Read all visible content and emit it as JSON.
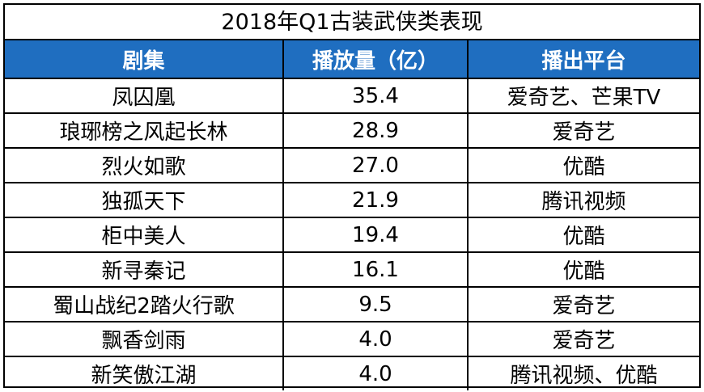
{
  "chart_data": {
    "type": "table",
    "title": "2018年Q1古装武侠类表现",
    "columns": [
      "剧集",
      "播放量（亿）",
      "播出平台"
    ],
    "rows": [
      [
        "凤囚凰",
        "35.4",
        "爱奇艺、芒果TV"
      ],
      [
        "琅琊榜之风起长林",
        "28.9",
        "爱奇艺"
      ],
      [
        "烈火如歌",
        "27.0",
        "优酷"
      ],
      [
        "独孤天下",
        "21.9",
        "腾讯视频"
      ],
      [
        "柜中美人",
        "19.4",
        "优酷"
      ],
      [
        "新寻秦记",
        "16.1",
        "优酷"
      ],
      [
        "蜀山战纪2踏火行歌",
        "9.5",
        "爱奇艺"
      ],
      [
        "飘香剑雨",
        "4.0",
        "爱奇艺"
      ],
      [
        "新笑傲江湖",
        "4.0",
        "腾讯视频、优酷"
      ]
    ]
  },
  "colors": {
    "header_bg": "#1f6ec0",
    "header_text": "#ffffff",
    "border": "#000000"
  }
}
